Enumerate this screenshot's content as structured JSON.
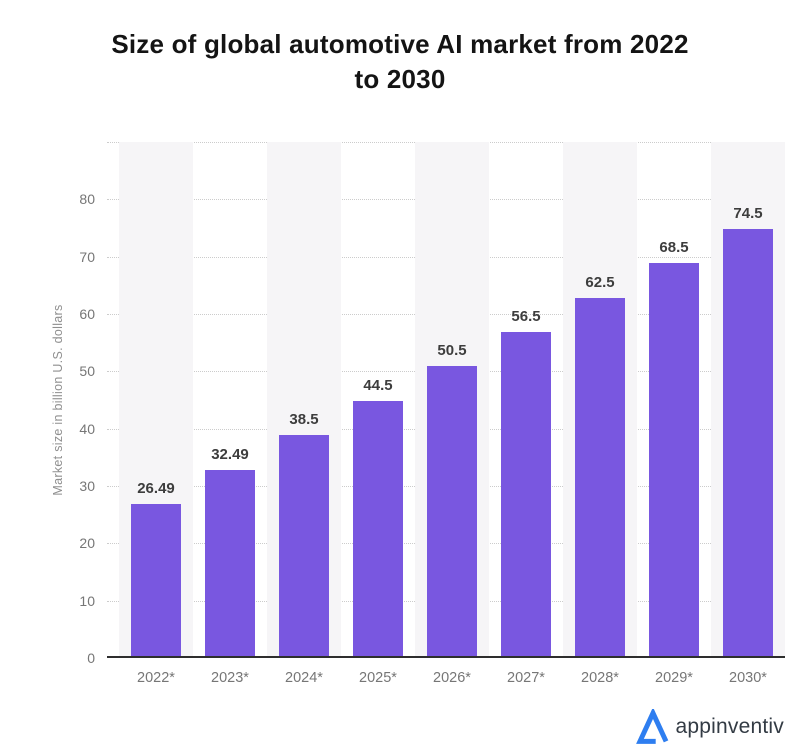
{
  "page": {
    "background": "#ffffff"
  },
  "title": {
    "full": "Size of global automotive AI market from 2022 to 2030",
    "line1": "Size of global automotive AI market from 2022",
    "line2": "to 2030"
  },
  "chart_data": {
    "type": "bar",
    "title": "Size of global automotive AI market from 2022 to 2030",
    "categories": [
      "2022*",
      "2023*",
      "2024*",
      "2025*",
      "2026*",
      "2027*",
      "2028*",
      "2029*",
      "2030*"
    ],
    "values": [
      26.49,
      32.49,
      38.5,
      44.5,
      50.5,
      56.5,
      62.5,
      68.5,
      74.5
    ],
    "value_labels": [
      "26.49",
      "32.49",
      "38.5",
      "44.5",
      "50.5",
      "56.5",
      "62.5",
      "68.5",
      "74.5"
    ],
    "xlabel": "",
    "ylabel": "Market size in billion U.S. dollars",
    "ylim": [
      0,
      90
    ],
    "yticks": [
      0,
      10,
      20,
      30,
      40,
      50,
      60,
      70,
      80
    ],
    "gridlines": [
      10,
      20,
      30,
      40,
      50,
      60,
      70,
      80,
      90
    ],
    "grid_style": "dotted horizontal",
    "legend_position": "none",
    "bar_color": "#7957E0",
    "column_band_color": "#F6F5F7",
    "grid_color": "#CCCCCC",
    "axis_line_color": "#2E2E2E",
    "tick_label_color": "#767676",
    "value_label_color": "#3D3D3D",
    "ylabel_color": "#8F8F8F"
  },
  "footer": {
    "logo_text": "appinventiv",
    "logo_icon": "appinventiv-triangle-a",
    "logo_icon_color": "#2E7EF0",
    "logo_text_color": "#333B44"
  }
}
